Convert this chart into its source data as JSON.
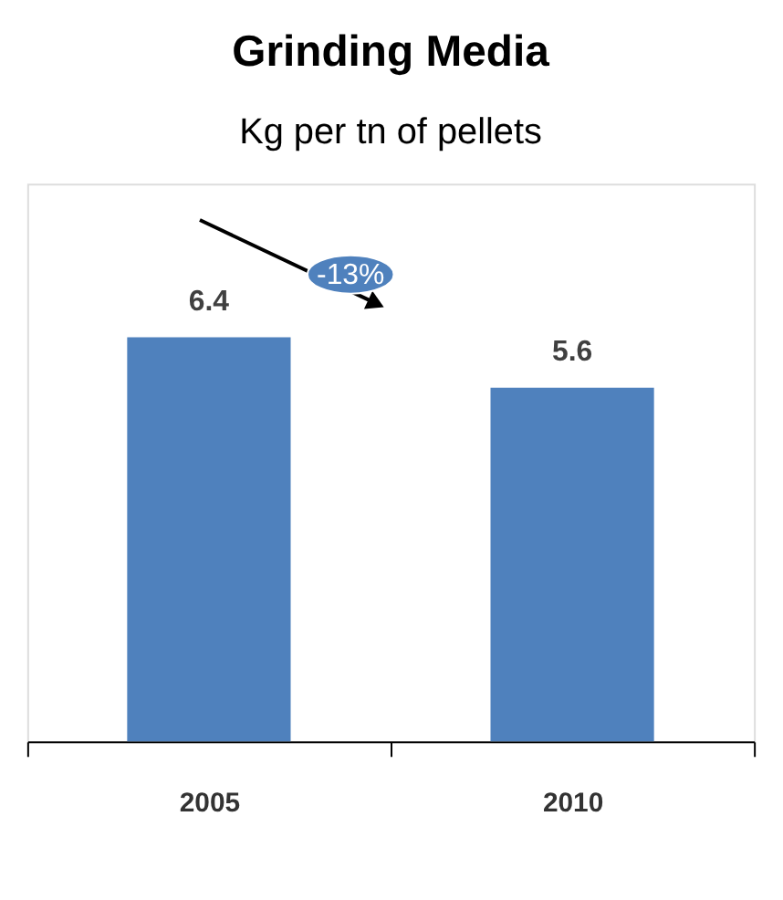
{
  "chart_data": {
    "type": "bar",
    "title": "Grinding Media",
    "subtitle": "Kg per tn of pellets",
    "categories": [
      "2005",
      "2010"
    ],
    "values": [
      6.4,
      5.6
    ],
    "color": "#4f81bd",
    "data_labels": true,
    "annotations": [
      "-13%"
    ],
    "grid": false
  }
}
